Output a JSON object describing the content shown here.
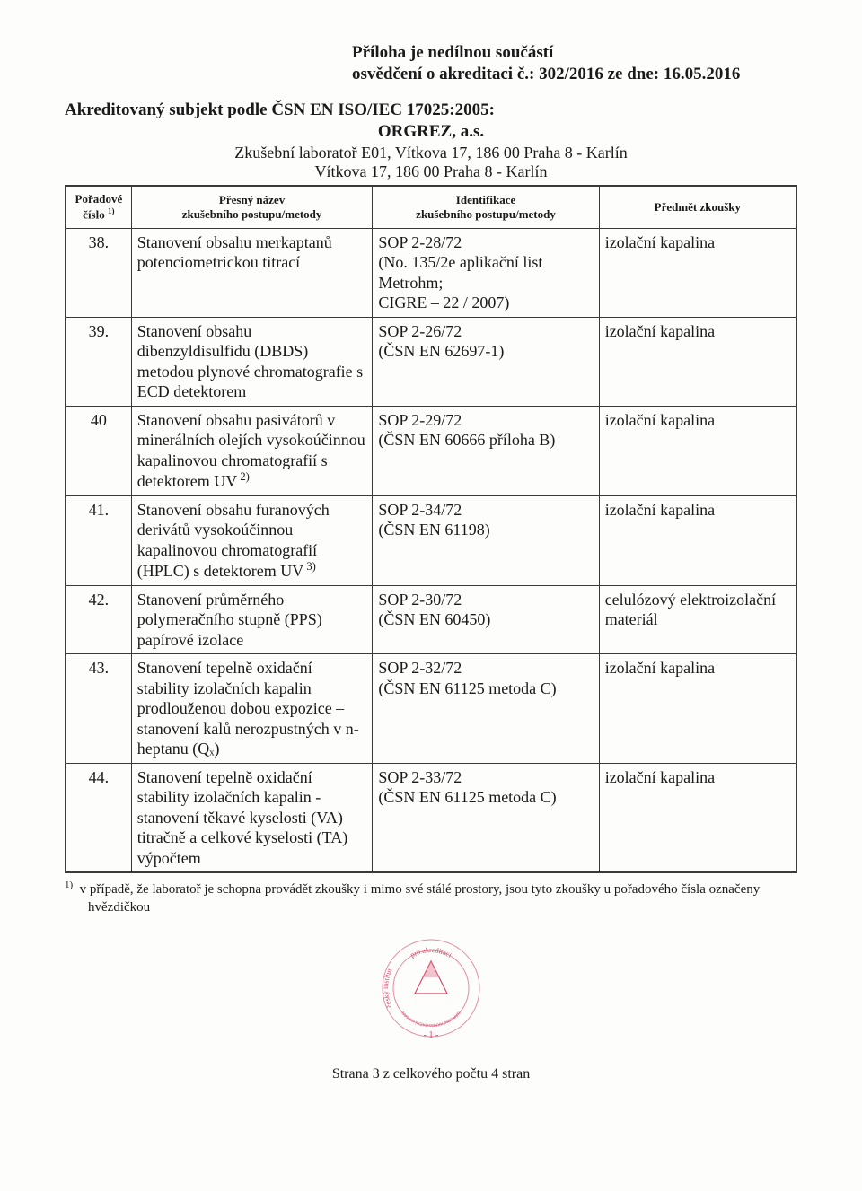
{
  "header": {
    "line1": "Příloha je nedílnou součástí",
    "line2": "osvědčení o akreditaci č.: 302/2016 ze dne: 16.05.2016"
  },
  "subject": "Akreditovaný subjekt podle ČSN EN ISO/IEC 17025:2005:",
  "org": "ORGREZ, a.s.",
  "lab": "Zkušební laboratoř E01, Vítkova 17, 186 00 Praha 8 - Karlín",
  "addr": "Vítkova 17, 186 00 Praha 8 - Karlín",
  "columns": {
    "c1a": "Pořadové",
    "c1b": "číslo",
    "c1sup": "1)",
    "c2a": "Přesný název",
    "c2b": "zkušebního postupu/metody",
    "c3a": "Identifikace",
    "c3b": "zkušebního postupu/metody",
    "c4": "Předmět zkoušky"
  },
  "rows": [
    {
      "num": "38.",
      "name": "Stanovení obsahu merkaptanů potenciometrickou titrací",
      "ident": "SOP 2-28/72\n(No. 135/2e aplikační list Metrohm;\nCIGRE – 22 / 2007)",
      "subject": "izolační kapalina"
    },
    {
      "num": "39.",
      "name": "Stanovení obsahu dibenzyldisulfidu (DBDS) metodou plynové chromatografie s ECD detektorem",
      "ident": "SOP 2-26/72\n(ČSN EN 62697-1)",
      "subject": "izolační kapalina"
    },
    {
      "num": "40",
      "name": "Stanovení obsahu pasivátorů v minerálních olejích vysokoúčinnou kapalinovou chromatografií s detektorem UV",
      "name_sup": "2)",
      "ident": "SOP 2-29/72\n(ČSN EN 60666 příloha B)",
      "subject": "izolační kapalina"
    },
    {
      "num": "41.",
      "name": "Stanovení obsahu furanových derivátů vysokoúčinnou kapalinovou chromatografií (HPLC) s detektorem UV",
      "name_sup": "3)",
      "ident": "SOP 2-34/72\n(ČSN EN 61198)",
      "subject": "izolační kapalina"
    },
    {
      "num": "42.",
      "name": "Stanovení průměrného polymeračního stupně (PPS) papírové izolace",
      "ident": "SOP 2-30/72\n(ČSN EN 60450)",
      "subject": "celulózový elektroizolační materiál"
    },
    {
      "num": "43.",
      "name": "Stanovení tepelně oxidační stability izolačních kapalin prodlouženou dobou expozice – stanovení kalů nerozpustných v n-heptanu (Qₓ)",
      "ident": "SOP 2-32/72\n(ČSN EN 61125 metoda C)",
      "subject": "izolační kapalina"
    },
    {
      "num": "44.",
      "name": "Stanovení tepelně oxidační stability izolačních kapalin - stanovení těkavé kyselosti (VA) titračně a celkové kyselosti (TA) výpočtem",
      "ident": "SOP 2-33/72\n(ČSN EN 61125 metoda C)",
      "subject": "izolační kapalina"
    }
  ],
  "footnote": {
    "sup": "1)",
    "text": "v případě, že laboratoř je schopna provádět zkoušky i mimo své stálé prostory, jsou tyto zkoušky u pořadového čísla označeny hvězdičkou"
  },
  "stamp": {
    "outer_text_top": "pro akreditaci",
    "outer_text_bottom": "český institut",
    "inner_text": "NÁRODNÍ AKREDITAČNÍ ORGÁN",
    "page_mark": "- 1 -",
    "colors": {
      "ink": "#d9476a",
      "faint": "#e48aa0"
    }
  },
  "footer": "Strana 3 z celkového počtu 4 stran"
}
